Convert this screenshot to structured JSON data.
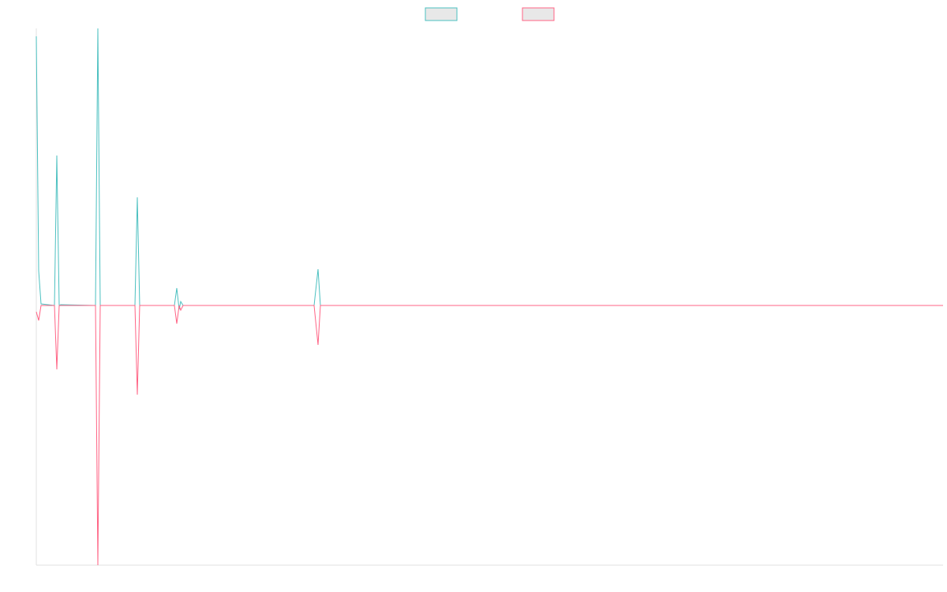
{
  "chart_data": {
    "type": "line",
    "x": [
      0,
      3,
      6,
      23,
      26,
      29,
      31,
      75,
      78,
      81,
      125,
      128,
      131,
      175,
      178,
      181,
      183,
      186,
      338,
      352,
      357,
      360,
      1149
    ],
    "xlim": [
      0,
      1149
    ],
    "ylim": [
      -329,
      351
    ],
    "grid": false,
    "legend": "top",
    "series": [
      {
        "color": "#4bc0c0",
        "values": [
          341,
          44,
          2,
          0,
          190,
          0,
          1,
          0,
          351,
          0,
          0,
          137,
          0,
          0,
          22,
          -5,
          5,
          0,
          0,
          0,
          46,
          0,
          0
        ]
      },
      {
        "color": "#ff6384",
        "values": [
          -8,
          -19,
          0,
          0,
          -81,
          0,
          0,
          0,
          -329,
          0,
          0,
          -113,
          0,
          0,
          -23,
          0,
          -6,
          0,
          0,
          0,
          -50,
          0,
          0
        ]
      }
    ]
  }
}
